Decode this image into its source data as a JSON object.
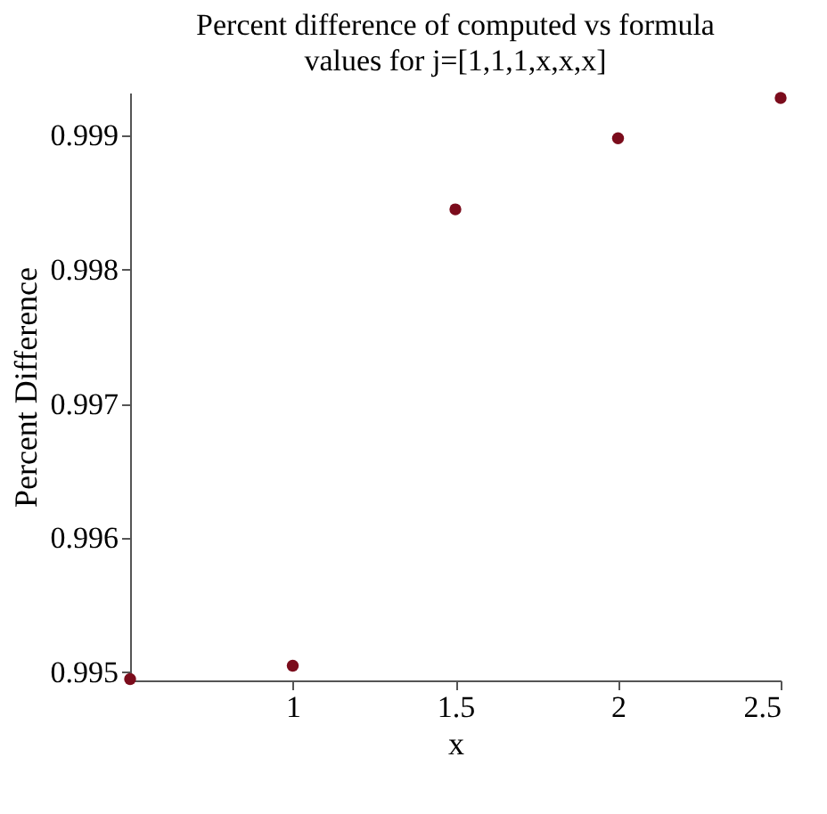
{
  "chart_data": {
    "type": "scatter",
    "title": "Percent difference of computed vs formula",
    "subtitle": "values for j=[1,1,1,x,x,x]",
    "xlabel": "x",
    "ylabel": "Percent Difference",
    "x": [
      0.5,
      1,
      1.5,
      2,
      2.5
    ],
    "series": [
      {
        "color": "#7b0c1c",
        "values": [
          0.99495,
          0.99505,
          0.99845,
          0.99898,
          0.99928
        ]
      }
    ],
    "xlim": [
      0.5,
      2.5
    ],
    "xticks": [
      1,
      1.5,
      2,
      2.5
    ],
    "ylim": [
      0.99494,
      0.99932
    ],
    "yticks": [
      0.995,
      0.996,
      0.997,
      0.998,
      0.999
    ],
    "grid": false,
    "marker": "circle"
  }
}
